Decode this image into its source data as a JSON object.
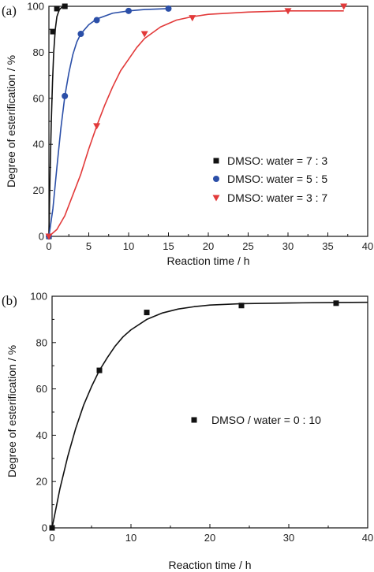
{
  "chart_data": [
    {
      "type": "scatter",
      "panel_label": "(a)",
      "xlabel": "Reaction time / h",
      "ylabel": "Degree of esterification / %",
      "xlim": [
        0,
        40
      ],
      "ylim": [
        0,
        100
      ],
      "xticks": [
        "0",
        "5",
        "10",
        "15",
        "20",
        "25",
        "30",
        "35",
        "40"
      ],
      "yticks": [
        "0",
        "20",
        "40",
        "60",
        "80",
        "100"
      ],
      "legend_position": "right-middle",
      "grid": false,
      "series": [
        {
          "name": "DMSO: water = 7 : 3",
          "marker": "square",
          "color": "#111111",
          "points": [
            [
              0,
              0
            ],
            [
              0.5,
              89
            ],
            [
              1,
              99
            ],
            [
              2,
              100
            ]
          ],
          "fit_curve": [
            [
              0,
              0
            ],
            [
              0.15,
              28
            ],
            [
              0.3,
              50
            ],
            [
              0.45,
              67
            ],
            [
              0.6,
              80
            ],
            [
              0.8,
              90
            ],
            [
              1.0,
              95.5
            ],
            [
              1.3,
              98.5
            ],
            [
              1.6,
              99.5
            ],
            [
              2.0,
              100
            ]
          ]
        },
        {
          "name": "DMSO: water = 5 : 5",
          "marker": "circle",
          "color": "#2b4fa8",
          "points": [
            [
              0,
              0
            ],
            [
              2,
              61
            ],
            [
              4,
              88
            ],
            [
              6,
              94
            ],
            [
              10,
              98
            ],
            [
              15,
              99
            ]
          ],
          "fit_curve": [
            [
              0,
              0
            ],
            [
              0.5,
              12
            ],
            [
              1,
              30
            ],
            [
              1.5,
              47
            ],
            [
              2,
              61
            ],
            [
              2.5,
              71
            ],
            [
              3,
              79
            ],
            [
              3.5,
              84.5
            ],
            [
              4,
              88
            ],
            [
              5,
              92
            ],
            [
              6,
              94.5
            ],
            [
              8,
              97
            ],
            [
              10,
              98
            ],
            [
              12,
              98.6
            ],
            [
              15,
              99
            ]
          ]
        },
        {
          "name": "DMSO: water = 3 : 7",
          "marker": "triangle-down",
          "color": "#e23a3a",
          "points": [
            [
              0,
              0
            ],
            [
              6,
              48
            ],
            [
              12,
              88
            ],
            [
              18,
              95
            ],
            [
              30,
              98
            ],
            [
              37,
              100
            ]
          ],
          "fit_curve": [
            [
              0,
              0
            ],
            [
              1,
              3
            ],
            [
              2,
              9
            ],
            [
              3,
              18
            ],
            [
              4,
              27
            ],
            [
              5,
              38
            ],
            [
              6,
              48
            ],
            [
              7,
              57
            ],
            [
              8,
              65
            ],
            [
              9,
              72
            ],
            [
              10,
              77
            ],
            [
              11,
              82
            ],
            [
              12,
              86
            ],
            [
              14,
              91
            ],
            [
              16,
              94
            ],
            [
              18,
              95.5
            ],
            [
              20,
              96.5
            ],
            [
              25,
              97.5
            ],
            [
              30,
              98
            ],
            [
              37,
              98
            ]
          ]
        }
      ]
    },
    {
      "type": "scatter",
      "panel_label": "(b)",
      "xlabel": "Reaction time / h",
      "ylabel": "Degree of esterification / %",
      "xlim": [
        0,
        40
      ],
      "ylim": [
        0,
        100
      ],
      "xticks": [
        "0",
        "10",
        "20",
        "30",
        "40"
      ],
      "yticks": [
        "0",
        "20",
        "40",
        "60",
        "80",
        "100"
      ],
      "legend_position": "right-middle",
      "grid": false,
      "series": [
        {
          "name": "DMSO / water = 0 : 10",
          "marker": "square",
          "color": "#111111",
          "points": [
            [
              0,
              0
            ],
            [
              6,
              68
            ],
            [
              12,
              93
            ],
            [
              24,
              96
            ],
            [
              36,
              97
            ]
          ],
          "fit_curve": [
            [
              0,
              0
            ],
            [
              1,
              17
            ],
            [
              2,
              31
            ],
            [
              3,
              43
            ],
            [
              4,
              53
            ],
            [
              5,
              61
            ],
            [
              6,
              68
            ],
            [
              7,
              73.5
            ],
            [
              8,
              78.5
            ],
            [
              9,
              82.5
            ],
            [
              10,
              85.5
            ],
            [
              12,
              90
            ],
            [
              14,
              92.8
            ],
            [
              16,
              94.5
            ],
            [
              18,
              95.5
            ],
            [
              20,
              96.2
            ],
            [
              24,
              96.8
            ],
            [
              30,
              97.1
            ],
            [
              36,
              97.3
            ],
            [
              40,
              97.4
            ]
          ]
        }
      ]
    }
  ]
}
